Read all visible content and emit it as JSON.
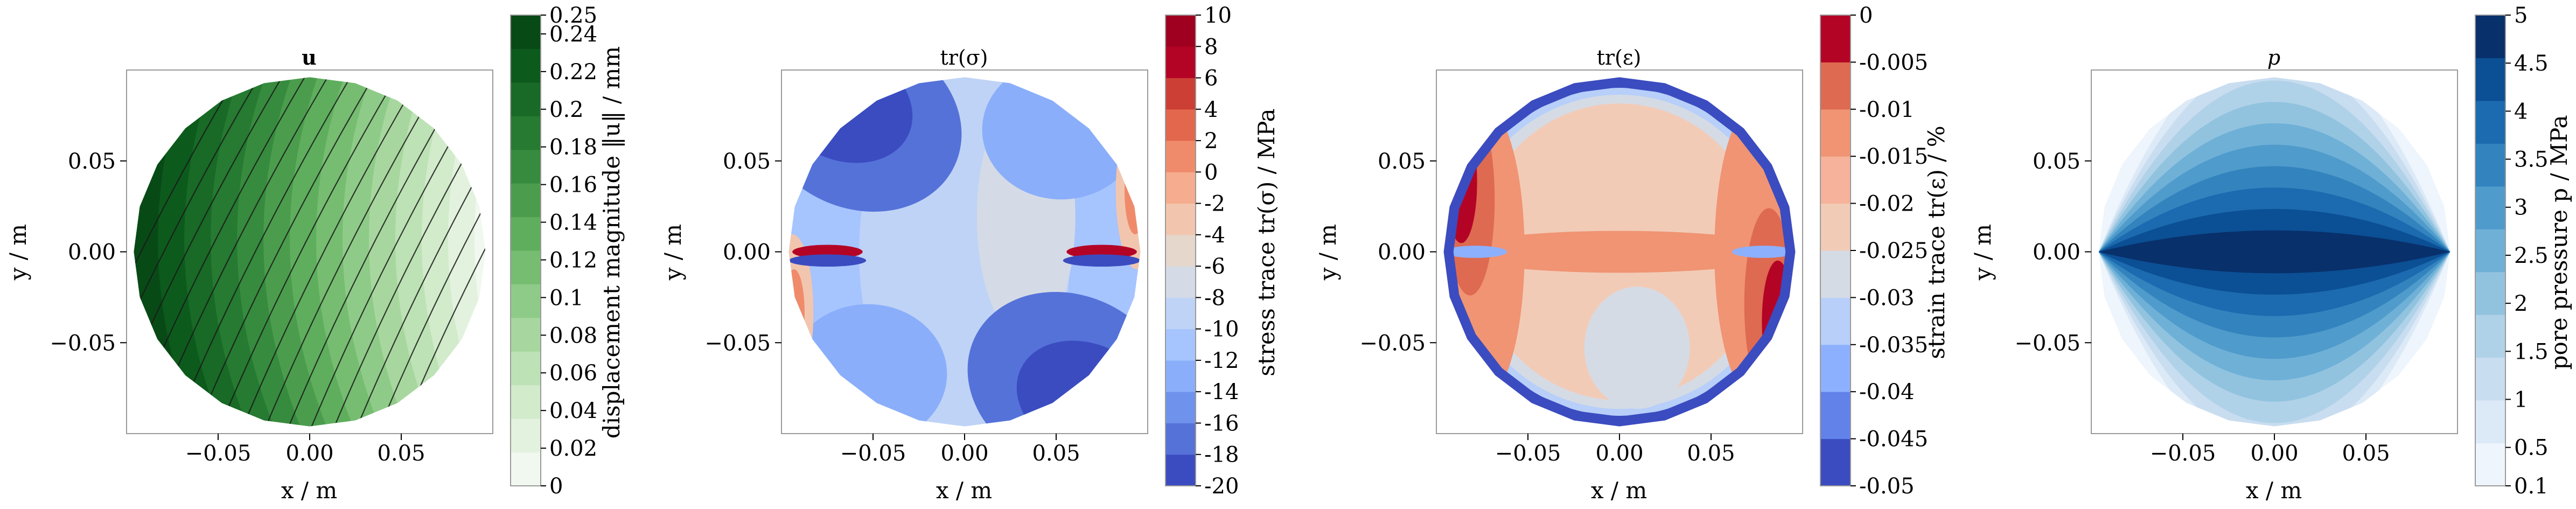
{
  "chart_data": [
    {
      "type": "contour",
      "title": "u",
      "xlabel": "x / m",
      "ylabel": "y / m",
      "xticks": [
        "−0.05",
        "0.00",
        "0.05"
      ],
      "yticks": [
        "0.05",
        "0.00",
        "−0.05"
      ],
      "xtick_values": [
        -0.05,
        0.0,
        0.05
      ],
      "ytick_values": [
        0.05,
        0.0,
        -0.05
      ],
      "xlim": [
        -0.1,
        0.1
      ],
      "ylim": [
        -0.1,
        0.1
      ],
      "streamlines": true,
      "colorbar": {
        "label": "displacement magnitude ‖u‖ / mm",
        "ticks": [
          "0.25",
          "0.24",
          "0.22",
          "0.2",
          "0.18",
          "0.16",
          "0.14",
          "0.12",
          "0.1",
          "0.08",
          "0.06",
          "0.04",
          "0.02",
          "0"
        ],
        "tick_values": [
          0.25,
          0.24,
          0.22,
          0.2,
          0.18,
          0.16,
          0.14,
          0.12,
          0.1,
          0.08,
          0.06,
          0.04,
          0.02,
          0
        ],
        "range": [
          0,
          0.25
        ],
        "colors": [
          "#f1f8ef",
          "#e3f2df",
          "#d2ebcb",
          "#bde2b5",
          "#a7d79e",
          "#8fcb88",
          "#76bd71",
          "#5fae5e",
          "#4b9d4d",
          "#378b3e",
          "#267a31",
          "#186a26",
          "#0d5a1d",
          "#084a16"
        ]
      }
    },
    {
      "type": "contour",
      "title": "tr(σ)",
      "xlabel": "x / m",
      "ylabel": "y / m",
      "xticks": [
        "−0.05",
        "0.00",
        "0.05"
      ],
      "yticks": [
        "0.05",
        "0.00",
        "−0.05"
      ],
      "xtick_values": [
        -0.05,
        0.0,
        0.05
      ],
      "ytick_values": [
        0.05,
        0.0,
        -0.05
      ],
      "xlim": [
        -0.1,
        0.1
      ],
      "ylim": [
        -0.1,
        0.1
      ],
      "colorbar": {
        "label": "stress trace tr(σ) / MPa",
        "ticks": [
          "10",
          "8",
          "6",
          "4",
          "2",
          "0",
          "-2",
          "-4",
          "-6",
          "-8",
          "-10",
          "-12",
          "-14",
          "-16",
          "-18",
          "-20"
        ],
        "tick_values": [
          10,
          8,
          6,
          4,
          2,
          0,
          -2,
          -4,
          -6,
          -8,
          -10,
          -12,
          -14,
          -16,
          -18,
          -20
        ],
        "range": [
          -20,
          10
        ],
        "colors": [
          "#3b4cc0",
          "#5572d9",
          "#6f92ed",
          "#8aaefa",
          "#a6c4fe",
          "#bfd3f6",
          "#d4dbe6",
          "#e6d7cc",
          "#f2c6ae",
          "#f6ac8e",
          "#ef8b6b",
          "#e2674d",
          "#cc3f35",
          "#b40426",
          "#a00020"
        ]
      }
    },
    {
      "type": "contour",
      "title": "tr(ε)",
      "xlabel": "x / m",
      "ylabel": "y / m",
      "xticks": [
        "−0.05",
        "0.00",
        "0.05"
      ],
      "yticks": [
        "0.05",
        "0.00",
        "−0.05"
      ],
      "xtick_values": [
        -0.05,
        0.0,
        0.05
      ],
      "ytick_values": [
        0.05,
        0.0,
        -0.05
      ],
      "xlim": [
        -0.1,
        0.1
      ],
      "ylim": [
        -0.1,
        0.1
      ],
      "colorbar": {
        "label": "strain trace tr(ε) / %",
        "ticks": [
          "0",
          "-0.005",
          "-0.01",
          "-0.015",
          "-0.02",
          "-0.025",
          "-0.03",
          "-0.035",
          "-0.04",
          "-0.045",
          "-0.05"
        ],
        "tick_values": [
          0,
          -0.005,
          -0.01,
          -0.015,
          -0.02,
          -0.025,
          -0.03,
          -0.035,
          -0.04,
          -0.045,
          -0.05
        ],
        "range": [
          -0.05,
          0
        ],
        "colors": [
          "#3b4cc0",
          "#6282ea",
          "#8db0fe",
          "#b7cff9",
          "#d5dbe5",
          "#f2cbb7",
          "#f6b29a",
          "#f09473",
          "#de6a51",
          "#b40426"
        ]
      }
    },
    {
      "type": "contour",
      "title": "p",
      "xlabel": "x / m",
      "ylabel": "y / m",
      "xticks": [
        "−0.05",
        "0.00",
        "0.05"
      ],
      "yticks": [
        "0.05",
        "0.00",
        "−0.05"
      ],
      "xtick_values": [
        -0.05,
        0.0,
        0.05
      ],
      "ytick_values": [
        0.05,
        0.0,
        -0.05
      ],
      "xlim": [
        -0.1,
        0.1
      ],
      "ylim": [
        -0.1,
        0.1
      ],
      "colorbar": {
        "label": "pore pressure p / MPa",
        "ticks": [
          "5",
          "4.5",
          "4",
          "3.5",
          "3",
          "2.5",
          "2",
          "1.5",
          "1",
          "0.5",
          "0.1"
        ],
        "tick_values": [
          5,
          4.5,
          4,
          3.5,
          3,
          2.5,
          2,
          1.5,
          1,
          0.5,
          0.1
        ],
        "range": [
          0.1,
          5
        ],
        "colors": [
          "#eef5fc",
          "#dce9f6",
          "#c9ddf0",
          "#b0d2e8",
          "#91c3df",
          "#6fb0d7",
          "#4f9bcb",
          "#3383be",
          "#1c6aaf",
          "#0b4f94",
          "#08306b"
        ]
      }
    }
  ]
}
